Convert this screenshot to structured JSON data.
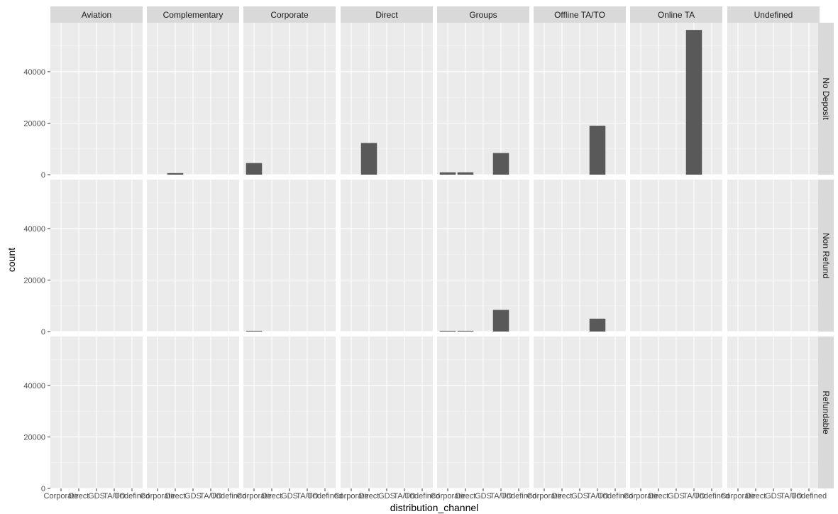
{
  "chart_data": {
    "type": "bar",
    "xlabel": "distribution_channel",
    "ylabel": "count",
    "ylim": [
      0,
      59000
    ],
    "y_ticks": [
      0,
      20000,
      40000
    ],
    "y_tick_labels": [
      "0",
      "20000",
      "40000"
    ],
    "categories": [
      "Corporate",
      "Direct",
      "GDS",
      "TA/TO",
      "Undefined"
    ],
    "facet_cols": [
      "Aviation",
      "Complementary",
      "Corporate",
      "Direct",
      "Groups",
      "Offline TA/TO",
      "Online TA",
      "Undefined"
    ],
    "facet_rows": [
      "No Deposit",
      "Non Refund",
      "Refundable"
    ],
    "grid": true,
    "bar_color": "#595959",
    "panel_color": "#ebebeb",
    "strip_color": "#d9d9d9",
    "bars": [
      {
        "row": "No Deposit",
        "col": "Complementary",
        "category": "Direct",
        "value": 600
      },
      {
        "row": "No Deposit",
        "col": "Corporate",
        "category": "Corporate",
        "value": 4500
      },
      {
        "row": "No Deposit",
        "col": "Direct",
        "category": "Direct",
        "value": 12300
      },
      {
        "row": "No Deposit",
        "col": "Groups",
        "category": "Corporate",
        "value": 900
      },
      {
        "row": "No Deposit",
        "col": "Groups",
        "category": "Direct",
        "value": 900
      },
      {
        "row": "No Deposit",
        "col": "Groups",
        "category": "TA/TO",
        "value": 8400
      },
      {
        "row": "No Deposit",
        "col": "Offline TA/TO",
        "category": "TA/TO",
        "value": 19000
      },
      {
        "row": "No Deposit",
        "col": "Online TA",
        "category": "TA/TO",
        "value": 56200
      },
      {
        "row": "Non Refund",
        "col": "Corporate",
        "category": "Corporate",
        "value": 300
      },
      {
        "row": "Non Refund",
        "col": "Groups",
        "category": "Corporate",
        "value": 300
      },
      {
        "row": "Non Refund",
        "col": "Groups",
        "category": "Direct",
        "value": 300
      },
      {
        "row": "Non Refund",
        "col": "Groups",
        "category": "TA/TO",
        "value": 8400
      },
      {
        "row": "Non Refund",
        "col": "Offline TA/TO",
        "category": "TA/TO",
        "value": 5000
      }
    ]
  }
}
